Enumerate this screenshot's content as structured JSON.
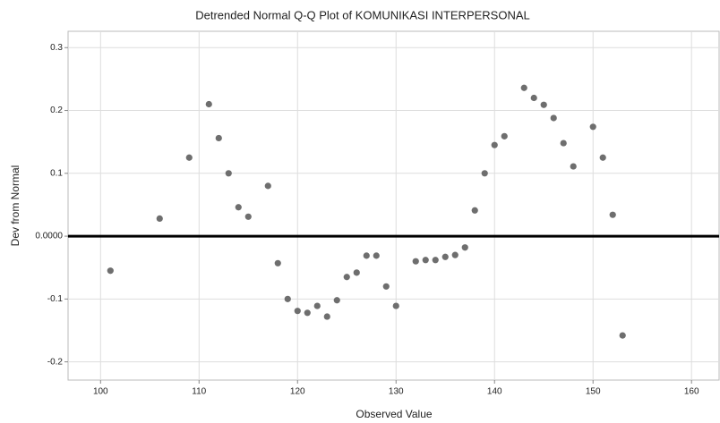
{
  "chart_data": {
    "type": "scatter",
    "title": "Detrended Normal Q-Q Plot of KOMUNIKASI INTERPERSONAL",
    "x_label": "Observed Value",
    "y_label": "Dev from Normal",
    "color": "#6e6e6e",
    "grid": true,
    "xlim": [
      96.7,
      162.8
    ],
    "xticks": [
      100,
      110,
      120,
      130,
      140,
      150,
      160
    ],
    "ylim": [
      -0.229,
      0.326
    ],
    "yticks": [
      0.3,
      0.2,
      0.1,
      {
        "value": 0,
        "label": "0.0000"
      },
      -0.1,
      -0.2
    ],
    "x": [
      101,
      106,
      109,
      111,
      112,
      113,
      114,
      115,
      117,
      118,
      119,
      120,
      121,
      122,
      123,
      124,
      125,
      126,
      127,
      128,
      129,
      130,
      132,
      133,
      134,
      135,
      136,
      137,
      138,
      139,
      140,
      141,
      143,
      144,
      145,
      146,
      147,
      148,
      150,
      151,
      152,
      153
    ],
    "values": [
      -0.055,
      0.028,
      0.125,
      0.21,
      0.156,
      0.1,
      0.046,
      0.031,
      0.08,
      -0.043,
      -0.1,
      -0.119,
      -0.122,
      -0.111,
      -0.128,
      -0.102,
      -0.065,
      -0.058,
      -0.031,
      -0.031,
      -0.08,
      -0.111,
      -0.04,
      -0.038,
      -0.038,
      -0.033,
      -0.03,
      -0.018,
      0.041,
      0.1,
      0.145,
      0.159,
      0.236,
      0.22,
      0.209,
      0.188,
      0.148,
      0.111,
      0.174,
      0.125,
      0.034,
      -0.158
    ]
  }
}
